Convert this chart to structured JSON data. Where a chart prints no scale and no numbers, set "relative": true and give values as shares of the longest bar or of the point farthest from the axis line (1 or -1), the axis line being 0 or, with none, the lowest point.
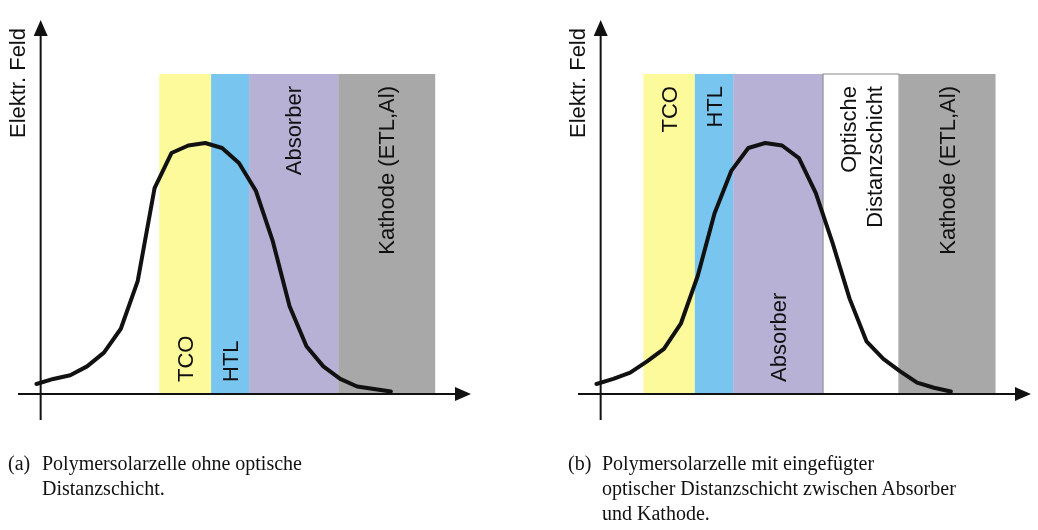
{
  "chart_data": [
    {
      "type": "line",
      "relative": true,
      "ylabel": "Elektr. Feld",
      "marker": "none",
      "line_style": "solid",
      "categories": [
        null,
        null,
        null,
        null,
        null,
        null,
        null,
        null,
        null,
        null,
        null,
        null,
        null,
        null,
        null,
        null,
        null,
        null,
        null,
        null,
        null,
        null,
        null,
        null,
        null
      ],
      "series": [
        {
          "color": "#111111",
          "values": [
            0.04,
            0.06,
            0.075,
            0.11,
            0.165,
            0.26,
            0.45,
            0.82,
            0.96,
            0.99,
            1,
            0.98,
            0.92,
            0.81,
            0.61,
            0.35,
            0.19,
            0.11,
            0.06,
            0.03,
            0.02,
            0.01,
            null,
            null,
            null
          ]
        }
      ],
      "annotations": [
        "TCO",
        "HTL",
        "Absorber",
        "Kathode (ETL,Al)",
        "(a) Polymersolarzelle ohne optische Distanzschicht."
      ]
    },
    {
      "type": "line",
      "relative": true,
      "ylabel": "Elektr. Feld",
      "marker": "none",
      "line_style": "solid",
      "categories": [
        null,
        null,
        null,
        null,
        null,
        null,
        null,
        null,
        null,
        null,
        null,
        null,
        null,
        null,
        null,
        null,
        null,
        null,
        null,
        null,
        null,
        null,
        null,
        null,
        null
      ],
      "series": [
        {
          "color": "#111111",
          "values": [
            0.04,
            0.06,
            0.085,
            0.13,
            0.18,
            0.28,
            0.47,
            0.72,
            0.89,
            0.98,
            1,
            0.99,
            0.94,
            0.8,
            0.6,
            0.38,
            0.21,
            0.14,
            0.09,
            0.045,
            0.025,
            0.01,
            null,
            null,
            null
          ]
        }
      ],
      "annotations": [
        "TCO",
        "HTL",
        "Absorber",
        "Optische\nDistanzschicht",
        "Kathode (ETL,Al)",
        "(b) Polymersolarzelle mit eingefügter optischer Distanzschicht zwischen Absorber und Kathode."
      ]
    }
  ]
}
